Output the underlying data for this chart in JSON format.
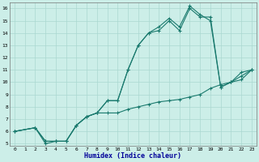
{
  "xlabel": "Humidex (Indice chaleur)",
  "bg_color": "#cceee8",
  "grid_color": "#aad8d0",
  "line_color": "#1a7a6e",
  "xlim": [
    -0.5,
    23.5
  ],
  "ylim": [
    4.8,
    16.5
  ],
  "xticks": [
    0,
    1,
    2,
    3,
    4,
    5,
    6,
    7,
    8,
    9,
    10,
    11,
    12,
    13,
    14,
    15,
    16,
    17,
    18,
    19,
    20,
    21,
    22,
    23
  ],
  "yticks": [
    5,
    6,
    7,
    8,
    9,
    10,
    11,
    12,
    13,
    14,
    15,
    16
  ],
  "line1_x": [
    0,
    2,
    3,
    4,
    5,
    6,
    7,
    8,
    9,
    10,
    11,
    12,
    13,
    14,
    15,
    16,
    17,
    18,
    19,
    20,
    21,
    22,
    23
  ],
  "line1_y": [
    6.0,
    6.3,
    5.0,
    5.2,
    5.2,
    6.5,
    7.2,
    7.5,
    7.5,
    7.5,
    7.8,
    8.0,
    8.2,
    8.4,
    8.5,
    8.6,
    8.8,
    9.0,
    9.5,
    9.8,
    10.0,
    10.8,
    11.0
  ],
  "line2_x": [
    0,
    2,
    3,
    4,
    5,
    6,
    7,
    8,
    9,
    10,
    11,
    12,
    13,
    14,
    15,
    16,
    17,
    18,
    19,
    20,
    21,
    22,
    23
  ],
  "line2_y": [
    6.0,
    6.3,
    5.2,
    5.2,
    5.2,
    6.5,
    7.2,
    7.5,
    8.5,
    8.5,
    11.0,
    13.0,
    14.0,
    14.2,
    15.0,
    14.2,
    16.0,
    15.3,
    15.3,
    9.6,
    10.0,
    10.2,
    11.0
  ],
  "line3_x": [
    0,
    2,
    3,
    4,
    5,
    6,
    7,
    8,
    9,
    10,
    11,
    12,
    13,
    14,
    15,
    16,
    17,
    18,
    19,
    20,
    21,
    22,
    23
  ],
  "line3_y": [
    6.0,
    6.3,
    5.2,
    5.2,
    5.2,
    6.5,
    7.2,
    7.5,
    8.5,
    8.5,
    11.0,
    13.0,
    14.0,
    14.5,
    15.2,
    14.5,
    16.2,
    15.5,
    15.0,
    9.6,
    10.0,
    10.5,
    11.0
  ]
}
